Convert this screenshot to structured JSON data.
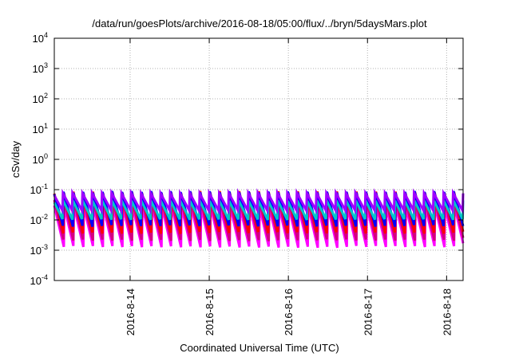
{
  "chart_data": {
    "type": "line",
    "title": "/data/run/goesPlots/archive/2016-08-18/05:00/flux/../bryn/5daysMars.plot",
    "xlabel": "Coordinated Universal Time (UTC)",
    "ylabel": "cSv/day",
    "yscale": "log",
    "ylim": [
      0.0001,
      10000
    ],
    "xlim": [
      "2016-08-13 01:00",
      "2016-08-18 05:00"
    ],
    "x_ticks": [
      "2016-8-14",
      "2016-8-15",
      "2016-8-16",
      "2016-8-17",
      "2016-8-18"
    ],
    "y_ticks": [
      {
        "base": "10",
        "exp": "-4"
      },
      {
        "base": "10",
        "exp": "-3"
      },
      {
        "base": "10",
        "exp": "-2"
      },
      {
        "base": "10",
        "exp": "-1"
      },
      {
        "base": "10",
        "exp": "0"
      },
      {
        "base": "10",
        "exp": "1"
      },
      {
        "base": "10",
        "exp": "2"
      },
      {
        "base": "10",
        "exp": "3"
      },
      {
        "base": "10",
        "exp": "4"
      }
    ],
    "grid": true,
    "legend": "none",
    "period_hours": 2.96,
    "series": [
      {
        "color": "#ff00ff",
        "peak": 0.03,
        "trough": 0.0012
      },
      {
        "color": "#d4007f",
        "peak": 0.05,
        "trough": 0.002
      },
      {
        "color": "#ff0000",
        "peak": 0.09,
        "trough": 0.0035
      },
      {
        "color": "#0000ff",
        "peak": 0.09,
        "trough": 0.006
      },
      {
        "color": "#00c8c8",
        "peak": 0.045,
        "trough": 0.01
      },
      {
        "color": "#a000ff",
        "peak": 0.08,
        "trough": 0.02
      }
    ]
  }
}
